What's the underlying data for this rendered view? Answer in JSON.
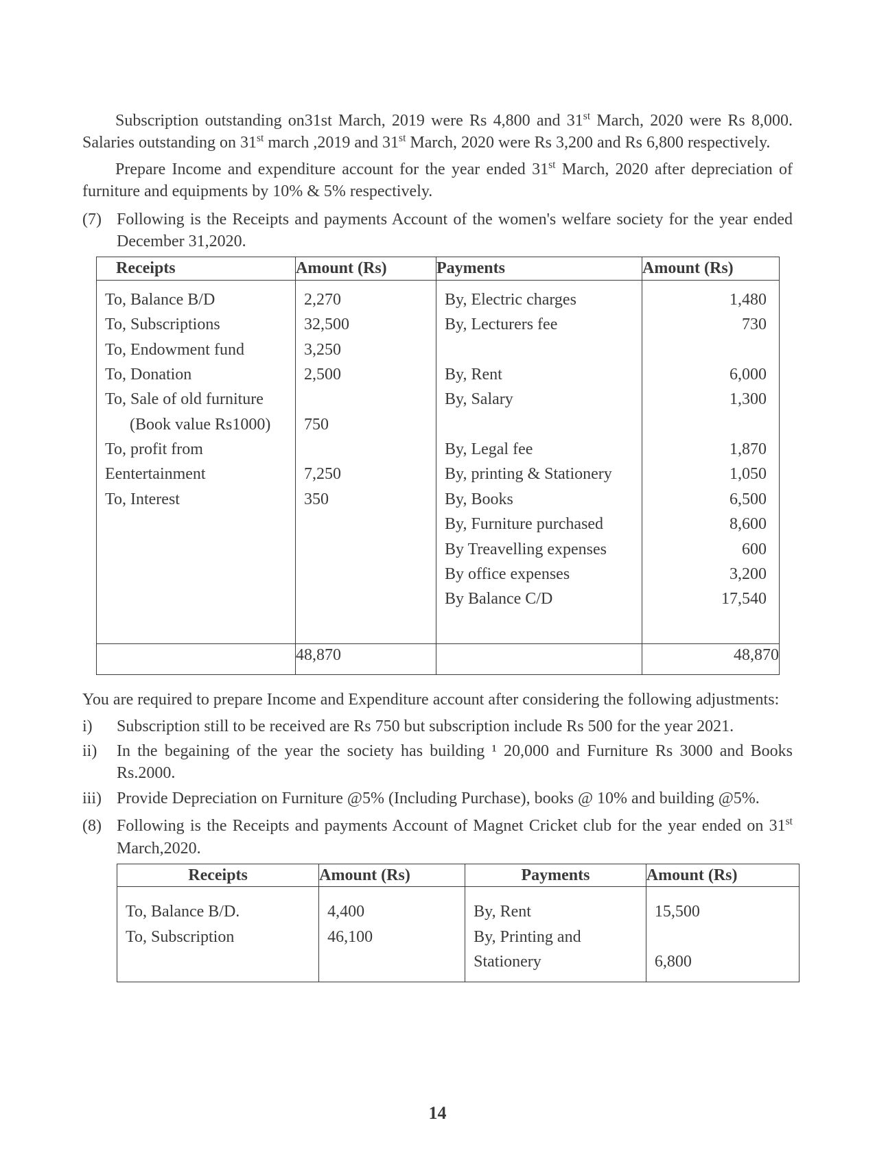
{
  "para1_a": "Subscription outstanding on31st March, 2019 were Rs 4,800 and 31",
  "para1_b": " March, 2020 were Rs 8,000. Salaries outstanding on 31",
  "para1_c": " march ,2019 and 31",
  "para1_d": " March, 2020 were Rs 3,200 and Rs 6,800 respectively.",
  "para2_a": "Prepare Income and expenditure account for the year ended 31",
  "para2_b": " March, 2020 after depreciation of furniture and equipments by 10% & 5% respectively.",
  "q7_num": "(7)",
  "q7_text": "Following is the Receipts and payments Account of the women's welfare society for the year ended December 31,2020.",
  "table1": {
    "col_widths": {
      "c1": 290,
      "c2": 200,
      "c3": 290,
      "c4": 190
    },
    "headers": {
      "h1": "Receipts",
      "h2": "Amount (Rs)",
      "h3": "Payments",
      "h4": "Amount (Rs)"
    },
    "left_rows": [
      {
        "label": "To, Balance B/D",
        "amt": "2,270"
      },
      {
        "label": "To, Subscriptions",
        "amt": "32,500"
      },
      {
        "label": "To, Endowment fund",
        "amt": "3,250"
      },
      {
        "label": "To, Donation",
        "amt": "2,500"
      },
      {
        "label": "To, Sale of old furniture",
        "amt": ""
      },
      {
        "label": "(Book  value Rs1000)",
        "amt": "750",
        "indent": true
      },
      {
        "label": "To, profit from",
        "amt": ""
      },
      {
        "label": "Eentertainment",
        "amt": "7,250"
      },
      {
        "label": "To, Interest",
        "amt": "350"
      }
    ],
    "right_rows": [
      {
        "label": "By, Electric charges",
        "amt": "1,480"
      },
      {
        "label": "By, Lecturers fee",
        "amt": "730"
      },
      {
        "label": "",
        "amt": ""
      },
      {
        "label": "By, Rent",
        "amt": "6,000"
      },
      {
        "label": "By, Salary",
        "amt": "1,300"
      },
      {
        "label": "",
        "amt": ""
      },
      {
        "label": "By, Legal fee",
        "amt": "1,870"
      },
      {
        "label": "By, printing & Stationery",
        "amt": "1,050"
      },
      {
        "label": "By, Books",
        "amt": "6,500"
      },
      {
        "label": "By, Furniture purchased",
        "amt": "8,600"
      },
      {
        "label": "By Treavelling expenses",
        "amt": "600"
      },
      {
        "label": "By office expenses",
        "amt": "3,200"
      },
      {
        "label": "By Balance C/D",
        "amt": "17,540"
      }
    ],
    "total": "48,870"
  },
  "after_t1": "You are required to prepare Income and Expenditure account after considering the following adjustments:",
  "adj": [
    {
      "mark": "i)",
      "text": "Subscription still to be received are Rs 750 but subscription include Rs 500 for the year 2021."
    },
    {
      "mark": "ii)",
      "text": "In the begaining of the year the society has building ¹ 20,000 and Furniture Rs 3000 and Books Rs.2000."
    },
    {
      "mark": "iii)",
      "text": "Provide Depreciation on Furniture @5% (Including Purchase), books @ 10% and building @5%."
    }
  ],
  "q8_num": "(8)",
  "q8_text_a": "Following is the Receipts and payments Account of Magnet Cricket club for the year ended on 31",
  "q8_text_b": " March,2020.",
  "table2": {
    "headers": {
      "h1": "Receipts",
      "h2": "Amount (Rs)",
      "h3": "Payments",
      "h4": "Amount (Rs)"
    },
    "left_rows": [
      {
        "label": "To, Balance B/D.",
        "amt": "4,400"
      },
      {
        "label": "To, Subscription",
        "amt": "46,100"
      }
    ],
    "right_rows": [
      {
        "label": "By, Rent",
        "amt": "15,500"
      },
      {
        "label": "By, Printing and",
        "amt": ""
      },
      {
        "label": "Stationery",
        "amt": "6,800"
      }
    ]
  },
  "sup_st": "st",
  "page_number": "14"
}
